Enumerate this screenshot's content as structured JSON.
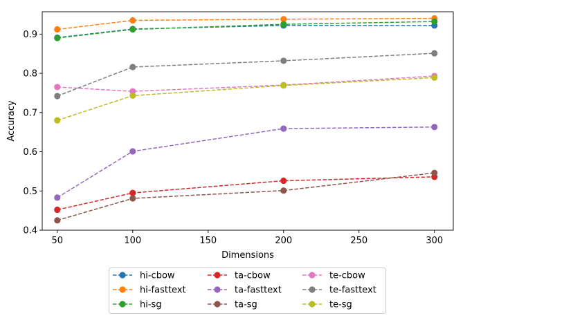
{
  "chart_data": {
    "type": "line",
    "title": "",
    "xlabel": "Dimensions",
    "ylabel": "Accuracy",
    "x": [
      50,
      100,
      200,
      300
    ],
    "xlim": [
      40,
      312.5
    ],
    "ylim": [
      0.4,
      0.957
    ],
    "xticks": [
      50,
      100,
      150,
      200,
      250,
      300
    ],
    "yticks": [
      0.4,
      0.5,
      0.6,
      0.7,
      0.8,
      0.9
    ],
    "xtick_labels": [
      "50",
      "100",
      "150",
      "200",
      "250",
      "300"
    ],
    "ytick_labels": [
      "0.4",
      "0.5",
      "0.6",
      "0.7",
      "0.8",
      "0.9"
    ],
    "grid": false,
    "legend_position": "below",
    "series": [
      {
        "name": "hi-cbow",
        "color": "#1f77b4",
        "values": [
          0.891,
          0.913,
          0.922,
          0.922
        ]
      },
      {
        "name": "hi-fasttext",
        "color": "#ff7f0e",
        "values": [
          0.912,
          0.935,
          0.938,
          0.94
        ]
      },
      {
        "name": "hi-sg",
        "color": "#2ca02c",
        "values": [
          0.89,
          0.912,
          0.925,
          0.932
        ]
      },
      {
        "name": "ta-cbow",
        "color": "#d62728",
        "values": [
          0.452,
          0.495,
          0.526,
          0.536
        ]
      },
      {
        "name": "ta-fasttext",
        "color": "#9467bd",
        "values": [
          0.483,
          0.601,
          0.659,
          0.663
        ]
      },
      {
        "name": "ta-sg",
        "color": "#8c564b",
        "values": [
          0.425,
          0.481,
          0.501,
          0.546
        ]
      },
      {
        "name": "te-cbow",
        "color": "#e377c2",
        "values": [
          0.765,
          0.754,
          0.77,
          0.793
        ]
      },
      {
        "name": "te-fasttext",
        "color": "#7f7f7f",
        "values": [
          0.742,
          0.816,
          0.832,
          0.851
        ]
      },
      {
        "name": "te-sg",
        "color": "#bcbd22",
        "values": [
          0.68,
          0.743,
          0.769,
          0.789
        ]
      }
    ]
  }
}
